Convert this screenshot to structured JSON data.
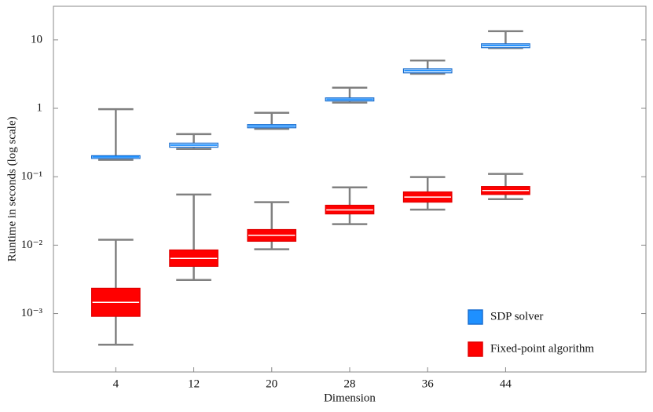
{
  "chart_data": {
    "type": "box",
    "x_label": "Dimension",
    "y_label": "Runtime in seconds (log scale)",
    "categories": [
      "4",
      "12",
      "20",
      "28",
      "36",
      "44"
    ],
    "ylim": [
      0.00014,
      31
    ],
    "log_y": true,
    "yticks": [
      10,
      1,
      {
        "value": 0.1,
        "label": "10⁻¹"
      },
      {
        "value": 0.01,
        "label": "10⁻²"
      },
      {
        "value": 0.001,
        "label": "10⁻³"
      }
    ],
    "legend": "lower right",
    "series": [
      {
        "name": "SDP solver",
        "color": "#1e90ff",
        "edge": "#1a6fd0",
        "fill": "#e8f3ff",
        "whislo": [
          0.177,
          0.255,
          0.5,
          1.21,
          3.2,
          7.6
        ],
        "q1": [
          0.185,
          0.27,
          0.52,
          1.28,
          3.3,
          7.7
        ],
        "median": [
          0.195,
          0.29,
          0.55,
          1.35,
          3.57,
          8.3
        ],
        "q3": [
          0.203,
          0.31,
          0.58,
          1.42,
          3.77,
          8.77
        ],
        "whishi": [
          0.97,
          0.42,
          0.86,
          2.0,
          5.0,
          13.4
        ]
      },
      {
        "name": "Fixed-point algorithm",
        "color": "#ff0000",
        "edge": "#e00000",
        "fill": "#ff0000",
        "whislo": [
          0.00035,
          0.0031,
          0.0087,
          0.0203,
          0.033,
          0.047
        ],
        "q1": [
          0.00091,
          0.0049,
          0.0114,
          0.0286,
          0.0425,
          0.055
        ],
        "median": [
          0.00146,
          0.0064,
          0.0139,
          0.0327,
          0.0504,
          0.063
        ],
        "q3": [
          0.00234,
          0.0085,
          0.0169,
          0.0383,
          0.06,
          0.072
        ],
        "whishi": [
          0.012,
          0.055,
          0.0425,
          0.07,
          0.099,
          0.11
        ]
      }
    ]
  }
}
